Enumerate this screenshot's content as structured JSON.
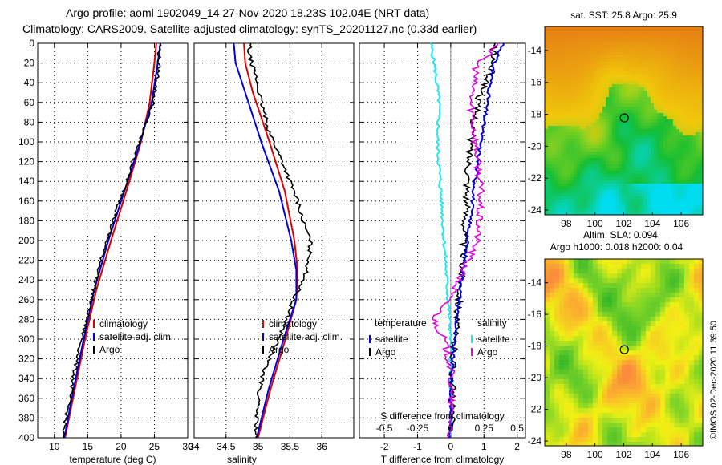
{
  "title_line1": "Argo profile: aoml 1902049_14 27-Nov-2020 18.23S 102.04E (NRT data)",
  "title_line2": "Climatology: CARS2009. Satellite-adjusted climatology: synTS_20201127.nc (0.33d earlier)",
  "watermark": "©IMOS 02-Dec-2020 11:39:50",
  "colors": {
    "climatology": "#dd0000",
    "satellite": "#0000dd",
    "argo": "#000000",
    "sat_diff_temp": "#22e6f0",
    "sal_diff": "#e000e0"
  },
  "chart_data": [
    {
      "type": "line",
      "id": "temperature",
      "xlabel": "temperature (deg C)",
      "xlim": [
        7.5,
        30
      ],
      "ylim": [
        0,
        400
      ],
      "xticks": [
        10,
        15,
        20,
        25,
        30
      ],
      "yticks": [
        0,
        20,
        40,
        60,
        80,
        100,
        120,
        140,
        160,
        180,
        200,
        220,
        240,
        260,
        280,
        300,
        320,
        340,
        360,
        380,
        400
      ],
      "legend": [
        "climatology",
        "satellite-adj. clim.",
        "Argo"
      ],
      "series": [
        {
          "name": "climatology",
          "depth": [
            0,
            20,
            60,
            100,
            150,
            200,
            250,
            300,
            350,
            400
          ],
          "values": [
            25.3,
            25.0,
            24.3,
            23.0,
            20.8,
            18.5,
            16.3,
            14.6,
            13.1,
            11.6
          ]
        },
        {
          "name": "satellite-adj. clim.",
          "depth": [
            0,
            20,
            60,
            100,
            150,
            200,
            250,
            300,
            350,
            400
          ],
          "values": [
            25.9,
            25.5,
            24.6,
            22.9,
            20.5,
            18.1,
            16.0,
            14.4,
            12.9,
            11.5
          ]
        },
        {
          "name": "Argo",
          "depth": [
            0,
            10,
            30,
            60,
            90,
            120,
            150,
            180,
            210,
            240,
            270,
            300,
            330,
            360,
            400
          ],
          "values": [
            25.9,
            25.7,
            25.6,
            24.8,
            23.2,
            21.8,
            20.4,
            18.8,
            17.4,
            16.3,
            15.2,
            14.1,
            13.1,
            12.3,
            11.2
          ]
        }
      ]
    },
    {
      "type": "line",
      "id": "salinity",
      "xlabel": "salinity",
      "xlim": [
        34.0,
        36.5
      ],
      "ylim": [
        0,
        400
      ],
      "xticks": [
        34,
        34.5,
        35,
        35.5,
        36
      ],
      "legend": [
        "climatology",
        "satellite-adj. clim.",
        "Argo"
      ],
      "series": [
        {
          "name": "climatology",
          "depth": [
            0,
            20,
            50,
            100,
            150,
            200,
            230,
            260,
            300,
            350,
            400
          ],
          "values": [
            34.78,
            34.8,
            34.92,
            35.18,
            35.42,
            35.57,
            35.62,
            35.6,
            35.43,
            35.2,
            35.0
          ],
          "color": "#dd0000"
        },
        {
          "name": "satellite-adj. clim.",
          "depth": [
            0,
            20,
            50,
            100,
            150,
            200,
            230,
            260,
            300,
            350,
            400
          ],
          "values": [
            34.62,
            34.65,
            34.8,
            35.05,
            35.33,
            35.52,
            35.6,
            35.6,
            35.4,
            35.17,
            34.98
          ],
          "color": "#0000dd"
        },
        {
          "name": "Argo",
          "depth": [
            0,
            10,
            30,
            60,
            90,
            120,
            140,
            160,
            180,
            200,
            220,
            240,
            260,
            280,
            300,
            330,
            360,
            400
          ],
          "values": [
            34.88,
            34.85,
            34.95,
            35.05,
            35.18,
            35.38,
            35.5,
            35.62,
            35.7,
            35.82,
            35.8,
            35.72,
            35.55,
            35.45,
            35.32,
            35.1,
            35.0,
            34.96
          ],
          "color": "#000000"
        }
      ]
    },
    {
      "type": "line",
      "id": "difference",
      "xlabel": "T difference from climatology",
      "top_label": "S difference from climatology",
      "xlim": [
        -2.75,
        2.25
      ],
      "ylim": [
        0,
        400
      ],
      "xticks": [
        -2,
        -1,
        0,
        1,
        2
      ],
      "top_ticks": [
        {
          "v": -0.5,
          "label": "-0.5"
        },
        {
          "v": -0.25,
          "label": "-0.25"
        },
        {
          "v": 0,
          "label": "0"
        },
        {
          "v": 0.25,
          "label": "0.25"
        },
        {
          "v": 0.5,
          "label": "0.5"
        }
      ],
      "legend_left": {
        "title": "temperature",
        "items": [
          "satellite",
          "Argo"
        ]
      },
      "legend_right": {
        "title": "salinity",
        "items": [
          "satellite",
          "Argo"
        ]
      },
      "series": [
        {
          "name": "T satellite",
          "depth": [
            0,
            20,
            60,
            100,
            150,
            200,
            250,
            300,
            350,
            400
          ],
          "values": [
            -0.6,
            -0.5,
            -0.35,
            -0.4,
            -0.3,
            -0.2,
            -0.1,
            0.0,
            0.0,
            0.0
          ],
          "color": "#22e6f0"
        },
        {
          "name": "T Argo",
          "depth": [
            0,
            10,
            30,
            60,
            100,
            150,
            200,
            250,
            300,
            350,
            400
          ],
          "values": [
            1.3,
            1.3,
            1.2,
            0.8,
            0.6,
            0.5,
            0.4,
            0.3,
            0.1,
            0.05,
            0.0
          ],
          "color": "#000000"
        },
        {
          "name": "S satellite",
          "depth": [
            0,
            20,
            60,
            100,
            150,
            200,
            250,
            300,
            350,
            400
          ],
          "values": [
            1.6,
            1.3,
            1.1,
            0.9,
            0.7,
            0.5,
            0.3,
            0.1,
            0.0,
            0.0
          ],
          "color": "#0000dd"
        },
        {
          "name": "S Argo",
          "depth": [
            0,
            20,
            60,
            100,
            150,
            200,
            250,
            280,
            300,
            330,
            360,
            400
          ],
          "values": [
            1.5,
            0.8,
            0.6,
            0.75,
            0.9,
            0.8,
            0.1,
            -0.5,
            -0.2,
            0.0,
            0.0,
            0.0
          ],
          "color": "#e000e0"
        }
      ]
    },
    {
      "type": "heatmap",
      "id": "sst_map",
      "title": "sat. SST: 25.8 Argo: 25.9",
      "xlim": [
        96.5,
        107.5
      ],
      "ylim": [
        -24.3,
        -12.5
      ],
      "xticks": [
        98,
        100,
        102,
        104,
        106
      ],
      "yticks": [
        -14,
        -16,
        -18,
        -20,
        -22,
        -24
      ],
      "marker": {
        "lon": 102.04,
        "lat": -18.23
      }
    },
    {
      "type": "heatmap",
      "id": "sla_map",
      "title": "Altim. SLA: 0.094",
      "subtitle": "Argo h1000: 0.018 h2000: 0.04",
      "xlim": [
        96.5,
        107.5
      ],
      "ylim": [
        -24.3,
        -12.5
      ],
      "xticks": [
        98,
        100,
        102,
        104,
        106
      ],
      "yticks": [
        -14,
        -16,
        -18,
        -20,
        -22,
        -24
      ],
      "marker": {
        "lon": 102.04,
        "lat": -18.23
      }
    }
  ]
}
